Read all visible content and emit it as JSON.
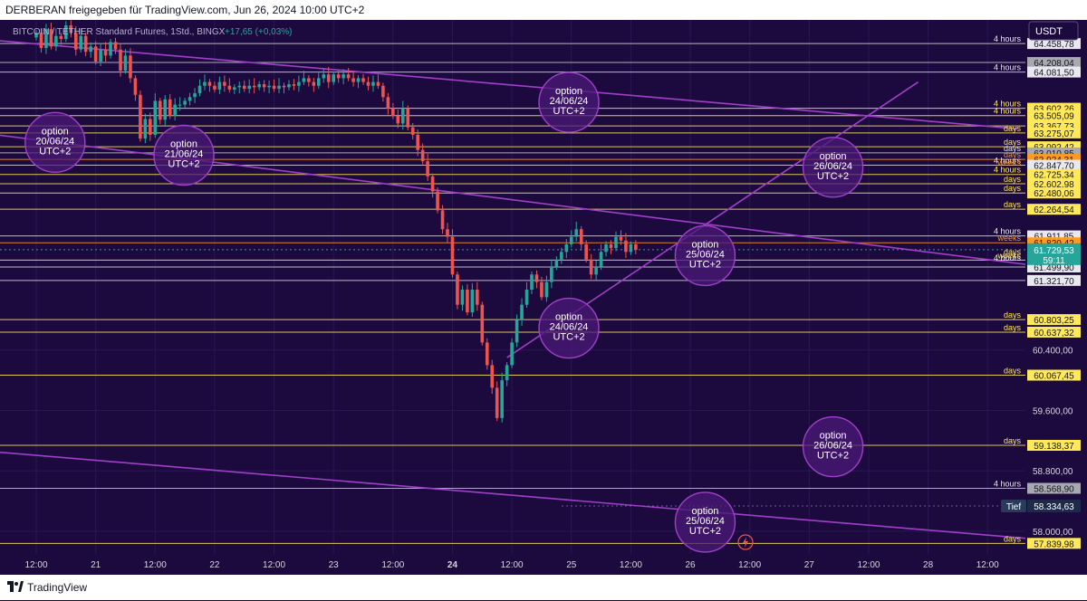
{
  "header": {
    "text": "DERBERAN freigegeben für TradingView.com, Jun 26, 2024 10:00 UTC+2"
  },
  "footer": {
    "brand": "TradingView"
  },
  "currency": "USDT",
  "colors": {
    "up": "#26a69a",
    "down": "#ef5350",
    "level": "#ffe95a",
    "purple": "#a03fc8"
  },
  "chart_data": {
    "type": "candlestick",
    "symbol_label": "BITCOIN / TETHER Standard Futures, 1Std., BINGX",
    "change_label": "+17,65 (+0,03%)",
    "ylim": [
      57700,
      64700
    ],
    "y_ticks": [
      {
        "value": 60400,
        "label": "60.400,00"
      },
      {
        "value": 59600,
        "label": "59.600,00"
      },
      {
        "value": 58800,
        "label": "58.800,00"
      },
      {
        "value": 58000,
        "label": "58.000,00"
      }
    ],
    "x_ticks": [
      {
        "x": 0,
        "label": "12:00"
      },
      {
        "x": 12,
        "label": "21"
      },
      {
        "x": 24,
        "label": "12:00"
      },
      {
        "x": 36,
        "label": "22"
      },
      {
        "x": 48,
        "label": "12:00"
      },
      {
        "x": 60,
        "label": "23"
      },
      {
        "x": 72,
        "label": "12:00"
      },
      {
        "x": 84,
        "label": "24",
        "bold": true
      },
      {
        "x": 96,
        "label": "12:00"
      },
      {
        "x": 108,
        "label": "25"
      },
      {
        "x": 120,
        "label": "12:00"
      },
      {
        "x": 132,
        "label": "26"
      },
      {
        "x": 144,
        "label": "12:00"
      },
      {
        "x": 156,
        "label": "27"
      },
      {
        "x": 168,
        "label": "12:00"
      },
      {
        "x": 180,
        "label": "28"
      },
      {
        "x": 192,
        "label": "12:00"
      }
    ],
    "levels": [
      {
        "value": 64458.78,
        "label": "64.458,78",
        "tag": "4 hours",
        "style": "white"
      },
      {
        "value": 64208.04,
        "label": "64.208,04",
        "tag": "",
        "style": "gray"
      },
      {
        "value": 64081.5,
        "label": "64.081,50",
        "tag": "4 hours",
        "style": "white"
      },
      {
        "value": 63602.26,
        "label": "63.602,26",
        "tag": "4 hours",
        "style": "yellow"
      },
      {
        "value": 63505.09,
        "label": "63.505,09",
        "tag": "4 hours",
        "style": "yellow"
      },
      {
        "value": 63367.73,
        "label": "63.367,73",
        "tag": "",
        "style": "yellow"
      },
      {
        "value": 63275.07,
        "label": "63.275,07",
        "tag": "days",
        "style": "yellow"
      },
      {
        "value": 63092.42,
        "label": "63.092,42",
        "tag": "days",
        "style": "yellow"
      },
      {
        "value": 63010.85,
        "label": "63.010,85",
        "tag": "days",
        "style": "gray"
      },
      {
        "value": 62924.31,
        "label": "62.924,31",
        "tag": "days",
        "style": "orange"
      },
      {
        "value": 62847.7,
        "label": "62.847,70",
        "tag": "4 hours",
        "style": "white"
      },
      {
        "value": 62725.34,
        "label": "62.725,34",
        "tag": "4 hours",
        "style": "yellow"
      },
      {
        "value": 62602.98,
        "label": "62.602,98",
        "tag": "days",
        "style": "yellow"
      },
      {
        "value": 62480.06,
        "label": "62.480,06",
        "tag": "days",
        "style": "yellow"
      },
      {
        "value": 62264.54,
        "label": "62.264,54",
        "tag": "days",
        "style": "yellow"
      },
      {
        "value": 61911.85,
        "label": "61.911,85",
        "tag": "4 hours",
        "style": "white"
      },
      {
        "value": 61820.42,
        "label": "61.820,42",
        "tag": "weeks",
        "style": "orange"
      },
      {
        "value": 61590.78,
        "label": "61.590,78",
        "tag": "weeks",
        "style": "yellow"
      },
      {
        "value": 61499.9,
        "label": "61.499,90",
        "tag": "",
        "style": "white"
      },
      {
        "value": 61321.7,
        "label": "61.321,70",
        "tag": "",
        "style": "white"
      },
      {
        "value": 60803.25,
        "label": "60.803,25",
        "tag": "days",
        "style": "yellow"
      },
      {
        "value": 60637.32,
        "label": "60.637,32",
        "tag": "days",
        "style": "yellow"
      },
      {
        "value": 60067.45,
        "label": "60.067,45",
        "tag": "days",
        "style": "yellow"
      },
      {
        "value": 59138.37,
        "label": "59.138,37",
        "tag": "days",
        "style": "yellow"
      },
      {
        "value": 58568.9,
        "label": "58.568,90",
        "tag": "4 hours",
        "style": "gray"
      },
      {
        "value": 57839.98,
        "label": "57.839,98",
        "tag": "days",
        "style": "yellow"
      }
    ],
    "extra_tags": [
      {
        "value": 62880,
        "text": "weeks",
        "color": "orange"
      },
      {
        "value": 61700,
        "text": "days",
        "color": "yellow"
      },
      {
        "value": 61620,
        "text": "4 hours",
        "color": "white"
      }
    ],
    "current_price": {
      "value": 61729.53,
      "label": "61.729,53",
      "countdown": "59:11"
    },
    "low": {
      "value": 58334.63,
      "label": "58.334,63",
      "tag": "Tief"
    },
    "trendlines": [
      {
        "x1": -8,
        "y1": 64500,
        "x2": 198,
        "y2": 63330
      },
      {
        "x1": -8,
        "y1": 63250,
        "x2": 210,
        "y2": 61450
      },
      {
        "x1": 95,
        "y1": 60300,
        "x2": 178,
        "y2": 63950
      },
      {
        "x1": -8,
        "y1": 59050,
        "x2": 210,
        "y2": 57850
      }
    ],
    "options": [
      {
        "x": 3.8,
        "y": 63150,
        "lines": [
          "option",
          "20/06/24",
          "UTC+2"
        ]
      },
      {
        "x": 29.8,
        "y": 62980,
        "lines": [
          "option",
          "21/06/24",
          "UTC+2"
        ]
      },
      {
        "x": 107.5,
        "y": 63680,
        "lines": [
          "option",
          "24/06/24",
          "UTC+2"
        ]
      },
      {
        "x": 107.5,
        "y": 60690,
        "lines": [
          "option",
          "24/06/24",
          "UTC+2"
        ]
      },
      {
        "x": 135,
        "y": 61650,
        "lines": [
          "option",
          "25/06/24",
          "UTC+2"
        ]
      },
      {
        "x": 135,
        "y": 58120,
        "lines": [
          "option",
          "25/06/24",
          "UTC+2"
        ]
      },
      {
        "x": 160.8,
        "y": 62820,
        "lines": [
          "option",
          "26/06/24",
          "UTC+2"
        ]
      },
      {
        "x": 160.8,
        "y": 59120,
        "lines": [
          "option",
          "26/06/24",
          "UTC+2"
        ]
      }
    ],
    "candles_close": [
      64600,
      64400,
      64650,
      64420,
      64560,
      64520,
      64700,
      64600,
      64380,
      64560,
      64350,
      64420,
      64220,
      64380,
      64300,
      64480,
      64380,
      64100,
      64300,
      64000,
      63780,
      63200,
      63460,
      63250,
      63700,
      63450,
      63720,
      63500,
      63650,
      63650,
      63700,
      63750,
      63800,
      63900,
      63950,
      63900,
      63850,
      63950,
      63900,
      63850,
      63880,
      63900,
      63860,
      63900,
      63880,
      63920,
      63880,
      63900,
      63860,
      63900,
      63880,
      63920,
      63900,
      63950,
      64000,
      63950,
      63900,
      64000,
      64050,
      63950,
      64050,
      64000,
      64050,
      64000,
      63950,
      64000,
      63950,
      63900,
      63950,
      63900,
      63750,
      63600,
      63500,
      63400,
      63600,
      63350,
      63250,
      63050,
      62900,
      62700,
      62500,
      62250,
      62000,
      61900,
      61400,
      61000,
      61200,
      60900,
      61200,
      61000,
      60500,
      60200,
      59900,
      59500,
      60000,
      60200,
      60500,
      60800,
      61000,
      61200,
      61400,
      61300,
      61100,
      61300,
      61500,
      61600,
      61700,
      61800,
      61900,
      62000,
      61800,
      61600,
      61400,
      61500,
      61700,
      61800,
      61750,
      61900,
      61850,
      61700,
      61800,
      61729
    ]
  }
}
